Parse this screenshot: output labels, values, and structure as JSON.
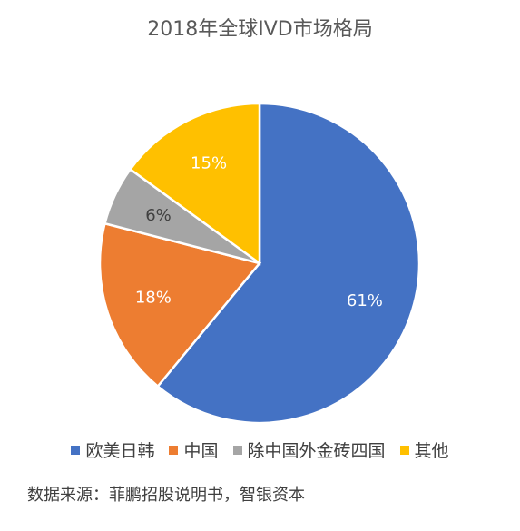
{
  "title": "2018年全球IVD市场格局",
  "source": "数据来源：菲鹏招股说明书，智银资本",
  "chart_data": {
    "type": "pie",
    "title": "2018年全球IVD市场格局",
    "legend_position": "bottom",
    "slices": [
      {
        "label": "欧美日韩",
        "value": 61,
        "display": "61%",
        "color": "#4472C4"
      },
      {
        "label": "中国",
        "value": 18,
        "display": "18%",
        "color": "#ED7D31"
      },
      {
        "label": "除中国外金砖四国",
        "value": 6,
        "display": "6%",
        "color": "#A5A5A5"
      },
      {
        "label": "其他",
        "value": 15,
        "display": "15%",
        "color": "#FFC000"
      }
    ]
  }
}
